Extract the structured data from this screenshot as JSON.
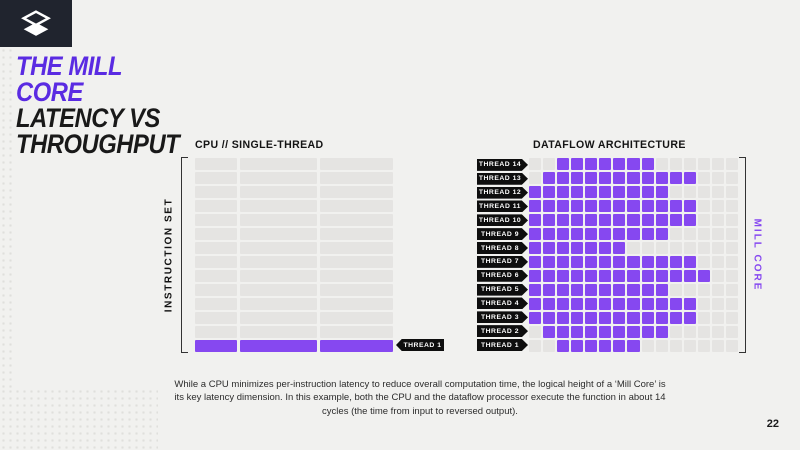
{
  "colors": {
    "bg": "#f1f1ef",
    "logoBg": "#20242e",
    "titlePurple": "#5a2be2",
    "dark": "#191919",
    "purple": "#8648f0",
    "cell": "#e5e4e2",
    "tag": "#0e0e0e"
  },
  "logo": {
    "name": "mill-layers-logo"
  },
  "title": {
    "line1": "THE MILL",
    "line2": "CORE",
    "line3": "LATENCY VS",
    "line4": "THROUGHPUT"
  },
  "chart_data": [
    {
      "type": "heatmap",
      "title": "CPU // SINGLE-THREAD",
      "ylabel": "INSTRUCTION SET",
      "rows": 14,
      "segments": [
        42,
        77,
        73
      ],
      "active_row_label": "THREAD 1",
      "active_row_position": "bottom",
      "description": "14 instruction-set rows; only the bottom row (THREAD 1) is active/purple, the 13 rows above are idle gray. Each row is split into 3 instruction segments."
    },
    {
      "type": "heatmap",
      "title": "DATAFLOW ARCHITECTURE",
      "ylabel": "MILL CORE",
      "rows": 14,
      "cols": 15,
      "legend": "filled = purple active cells, columns are 1-based inclusive ranges",
      "threads": [
        {
          "label": "THREAD 14",
          "filled": [
            3,
            9
          ]
        },
        {
          "label": "THREAD 13",
          "filled": [
            2,
            12
          ]
        },
        {
          "label": "THREAD 12",
          "filled": [
            1,
            10
          ]
        },
        {
          "label": "THREAD 11",
          "filled": [
            1,
            12
          ]
        },
        {
          "label": "THREAD 10",
          "filled": [
            1,
            12
          ]
        },
        {
          "label": "THREAD 9",
          "filled": [
            1,
            10
          ]
        },
        {
          "label": "THREAD 8",
          "filled": [
            1,
            7
          ]
        },
        {
          "label": "THREAD 7",
          "filled": [
            1,
            12
          ]
        },
        {
          "label": "THREAD 6",
          "filled": [
            1,
            13
          ]
        },
        {
          "label": "THREAD 5",
          "filled": [
            1,
            10
          ]
        },
        {
          "label": "THREAD 4",
          "filled": [
            1,
            12
          ]
        },
        {
          "label": "THREAD 3",
          "filled": [
            1,
            12
          ]
        },
        {
          "label": "THREAD 2",
          "filled": [
            2,
            10
          ]
        },
        {
          "label": "THREAD 1",
          "filled": [
            3,
            8
          ]
        }
      ]
    }
  ],
  "caption": {
    "text": "While a CPU minimizes per-instruction latency to reduce overall computation time, the logical height of a ‘Mill Core’  is its key latency dimension. In this example, both the CPU and the dataflow processor execute the function in about 14 cycles (the time from input to reversed output)."
  },
  "page": {
    "number": "22"
  }
}
